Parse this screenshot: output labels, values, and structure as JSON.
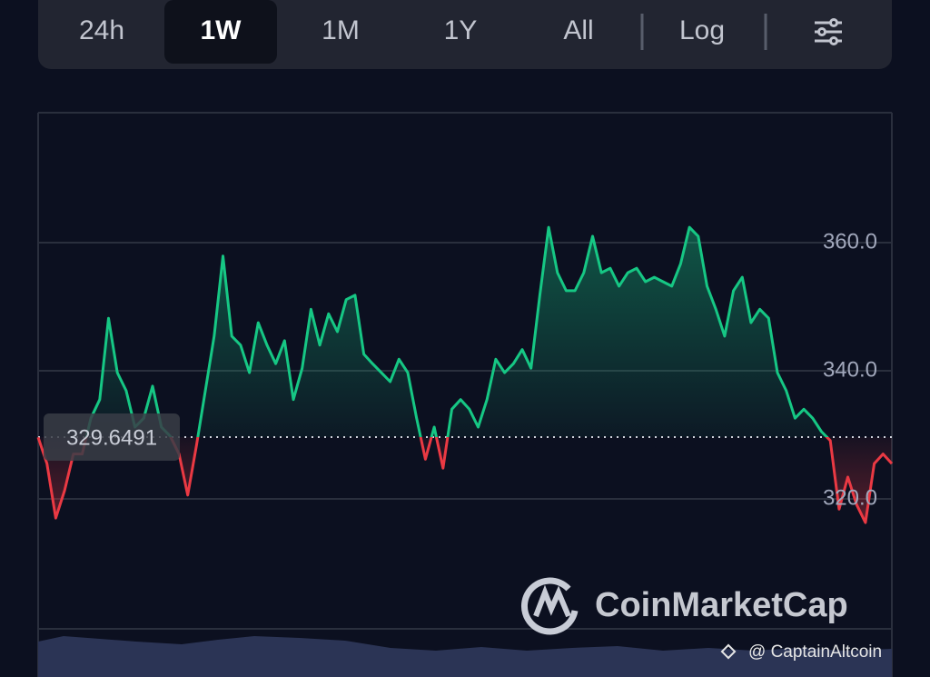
{
  "tabs": [
    "24h",
    "1W",
    "1M",
    "1Y",
    "All",
    "Log"
  ],
  "active_tab": "1W",
  "watermark": "CoinMarketCap",
  "credit": "@ CaptainAltcoin",
  "chart_data": {
    "type": "line",
    "values": [
      329.6,
      325.5,
      317.0,
      321.3,
      327.0,
      327.0,
      332.6,
      335.5,
      348.2,
      339.7,
      336.9,
      331.2,
      332.6,
      337.6,
      331.2,
      329.8,
      327.0,
      320.6,
      328.4,
      336.9,
      345.4,
      357.9,
      345.4,
      344.0,
      339.7,
      347.5,
      344.0,
      341.1,
      344.7,
      335.5,
      340.4,
      349.6,
      344.0,
      348.9,
      346.1,
      351.1,
      351.8,
      342.6,
      341.1,
      339.7,
      338.3,
      341.8,
      339.7,
      332.6,
      326.2,
      331.2,
      324.8,
      334.0,
      335.5,
      334.0,
      331.2,
      335.5,
      341.8,
      339.7,
      341.1,
      343.3,
      340.4,
      351.8,
      362.4,
      355.3,
      352.5,
      352.5,
      355.3,
      361.0,
      355.3,
      356.0,
      353.2,
      355.3,
      356.0,
      353.9,
      354.6,
      353.9,
      353.2,
      356.7,
      362.4,
      361.0,
      353.2,
      349.6,
      345.4,
      352.5,
      354.6,
      347.5,
      349.6,
      348.2,
      339.7,
      336.9,
      332.6,
      334.0,
      332.6,
      330.5,
      329.1,
      318.4,
      323.4,
      319.1,
      316.3,
      325.5,
      327.0,
      325.5
    ],
    "reference": 329.6491,
    "ylim": [
      300,
      380
    ],
    "yticks": [
      {
        "value": 320,
        "label": "320.0"
      },
      {
        "value": 340,
        "label": "340.0"
      },
      {
        "value": 360,
        "label": "360.0"
      }
    ],
    "grid": true,
    "colors": {
      "up": "#16c784",
      "down": "#ea3943"
    }
  }
}
